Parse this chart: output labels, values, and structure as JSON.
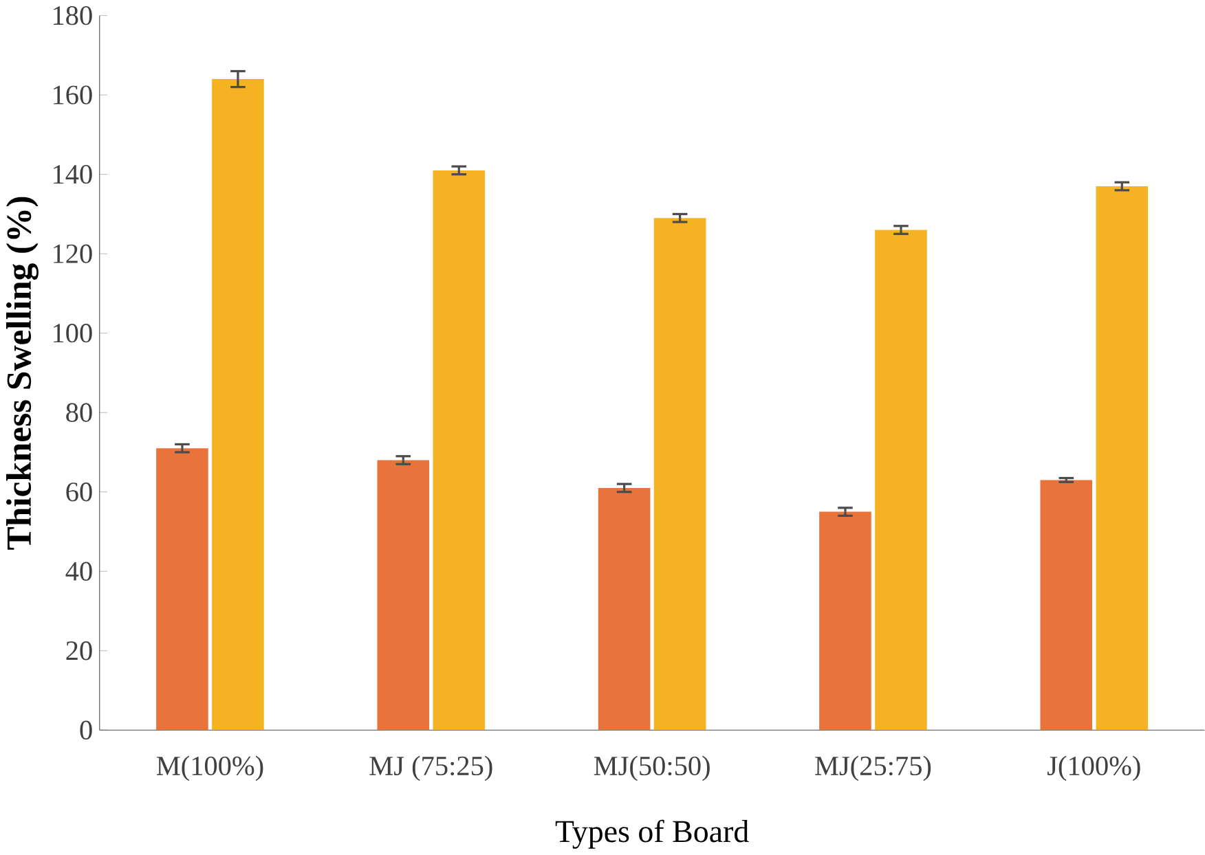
{
  "chart_data": {
    "type": "bar",
    "xlabel": "Types of Board",
    "ylabel": "Thickness  Swelling (%)",
    "categories": [
      "M(100%)",
      "MJ (75:25)",
      "MJ(50:50)",
      "MJ(25:75)",
      "J(100%)"
    ],
    "series": [
      {
        "color": "#e8743b",
        "values": [
          71,
          68,
          61,
          55,
          63
        ],
        "errors": [
          1,
          1,
          1,
          1,
          0.5
        ]
      },
      {
        "color": "#f5b324",
        "values": [
          164,
          141,
          129,
          126,
          137
        ],
        "errors": [
          2,
          1,
          1,
          1,
          1
        ]
      }
    ],
    "ylim": [
      0,
      180
    ],
    "yticks": [
      0,
      20,
      40,
      60,
      80,
      100,
      120,
      140,
      160,
      180
    ]
  }
}
